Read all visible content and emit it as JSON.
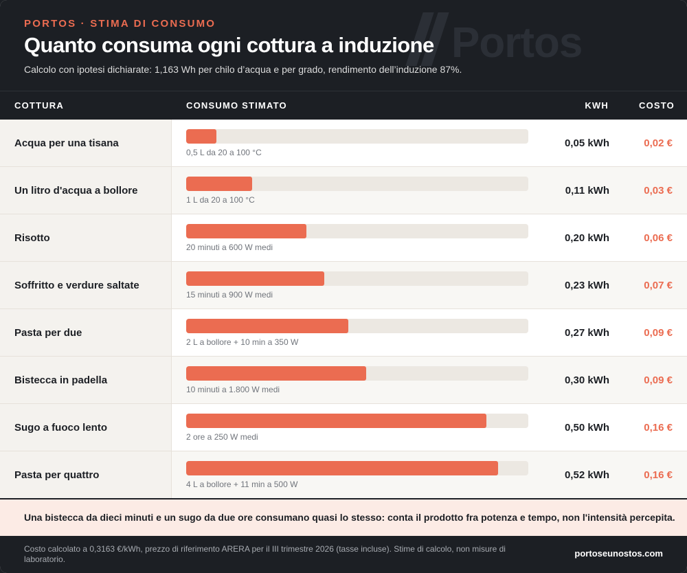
{
  "header": {
    "kicker": "PORTOS · STIMA DI CONSUMO",
    "title": "Quanto consuma ogni cottura a induzione",
    "subtitle": "Calcolo con ipotesi dichiarate: 1,163 Wh per chilo d’acqua e per grado, rendimento dell’induzione 87%.",
    "watermark": "Portos"
  },
  "columns": {
    "cottura": "COTTURA",
    "consumo": "CONSUMO STIMATO",
    "kwh": "KWH",
    "costo": "COSTO"
  },
  "chart_data": {
    "type": "bar",
    "title": "Quanto consuma ogni cottura a induzione",
    "categories": [
      "Acqua per una tisana",
      "Un litro d'acqua a bollore",
      "Risotto",
      "Soffritto e verdure saltate",
      "Pasta per due",
      "Bistecca in padella",
      "Sugo a fuoco lento",
      "Pasta per quattro"
    ],
    "series": [
      {
        "name": "",
        "values": [
          0.05,
          0.11,
          0.2,
          0.23,
          0.27,
          0.3,
          0.5,
          0.52
        ]
      }
    ],
    "xlim": [
      0,
      0.57
    ],
    "rows": [
      {
        "label": "Acqua per una tisana",
        "value": 0.05,
        "note": "0,5 L da 20 a 100 °C",
        "kwh": "0,05 kWh",
        "cost": "0,02 €"
      },
      {
        "label": "Un litro d'acqua a bollore",
        "value": 0.11,
        "note": "1 L da 20 a 100 °C",
        "kwh": "0,11 kWh",
        "cost": "0,03 €"
      },
      {
        "label": "Risotto",
        "value": 0.2,
        "note": "20 minuti a 600 W medi",
        "kwh": "0,20 kWh",
        "cost": "0,06 €"
      },
      {
        "label": "Soffritto e verdure saltate",
        "value": 0.23,
        "note": "15 minuti a 900 W medi",
        "kwh": "0,23 kWh",
        "cost": "0,07 €"
      },
      {
        "label": "Pasta per due",
        "value": 0.27,
        "note": "2 L a bollore + 10 min a 350 W",
        "kwh": "0,27 kWh",
        "cost": "0,09 €"
      },
      {
        "label": "Bistecca in padella",
        "value": 0.3,
        "note": "10 minuti a 1.800 W medi",
        "kwh": "0,30 kWh",
        "cost": "0,09 €"
      },
      {
        "label": "Sugo a fuoco lento",
        "value": 0.5,
        "note": "2 ore a 250 W medi",
        "kwh": "0,50 kWh",
        "cost": "0,16 €"
      },
      {
        "label": "Pasta per quattro",
        "value": 0.52,
        "note": "4 L a bollore + 11 min a 500 W",
        "kwh": "0,52 kWh",
        "cost": "0,16 €"
      }
    ]
  },
  "callout": "Una bistecca da dieci minuti e un sugo da due ore consumano quasi lo stesso: conta il prodotto fra potenza e tempo, non l'intensità percepita.",
  "footer": {
    "note": "Costo calcolato a 0,3163 €/kWh, prezzo di riferimento ARERA per il III trimestre 2026 (tasse incluse). Stime di calcolo, non misure di laboratorio.",
    "site": "portoseunostos.com"
  },
  "colors": {
    "accent": "#eb6c51",
    "dark": "#1c1f24",
    "track": "#ece8e2"
  }
}
